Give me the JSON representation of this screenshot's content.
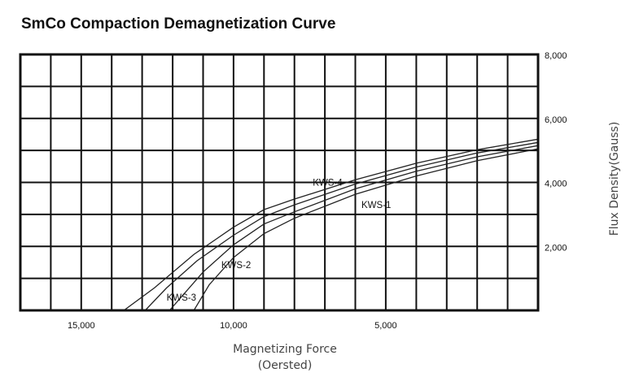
{
  "chart_data": {
    "type": "line",
    "title": "SmCo Compaction Demagnetization Curve",
    "xlabel": [
      "Magnetizing Force",
      "(Oersted)"
    ],
    "ylabel": "Flux Density(Gauss)",
    "x_reversed": true,
    "xlim": [
      0,
      17000
    ],
    "ylim": [
      0,
      8000
    ],
    "y_axis_position": "right",
    "grid": true,
    "x_ticks": [
      {
        "value": 15000,
        "label": "15,000"
      },
      {
        "value": 10000,
        "label": "10,000"
      },
      {
        "value": 5000,
        "label": "5,000"
      }
    ],
    "y_ticks": [
      {
        "value": 8000,
        "label": "8,000"
      },
      {
        "value": 6000,
        "label": "6,000"
      },
      {
        "value": 4000,
        "label": "4,000"
      },
      {
        "value": 2000,
        "label": "2,000"
      }
    ],
    "series": [
      {
        "name": "KWS-1",
        "label_at": [
          5800,
          3200
        ],
        "x": [
          0,
          2000,
          4000,
          6000,
          8000,
          9000,
          10000,
          10800,
          11300
        ],
        "y": [
          5050,
          4680,
          4200,
          3630,
          2880,
          2400,
          1650,
          800,
          0
        ]
      },
      {
        "name": "KWS-2",
        "label_at": [
          10400,
          1320
        ],
        "x": [
          0,
          2000,
          4000,
          6000,
          8000,
          9000,
          10000,
          11000,
          12100
        ],
        "y": [
          5150,
          4800,
          4350,
          3800,
          3080,
          2700,
          2050,
          1200,
          0
        ]
      },
      {
        "name": "KWS-3",
        "label_at": [
          12200,
          300
        ],
        "x": [
          0,
          2000,
          4000,
          6000,
          8000,
          9000,
          10000,
          11200,
          12200,
          12900
        ],
        "y": [
          5250,
          4920,
          4480,
          3950,
          3300,
          2930,
          2350,
          1550,
          700,
          0
        ]
      },
      {
        "name": "KWS-4",
        "label_at": [
          7400,
          3900
        ],
        "x": [
          0,
          2000,
          4000,
          6000,
          8000,
          9000,
          10000,
          11300,
          12600,
          13600
        ],
        "y": [
          5350,
          5020,
          4600,
          4080,
          3480,
          3150,
          2600,
          1750,
          700,
          0
        ]
      }
    ]
  }
}
